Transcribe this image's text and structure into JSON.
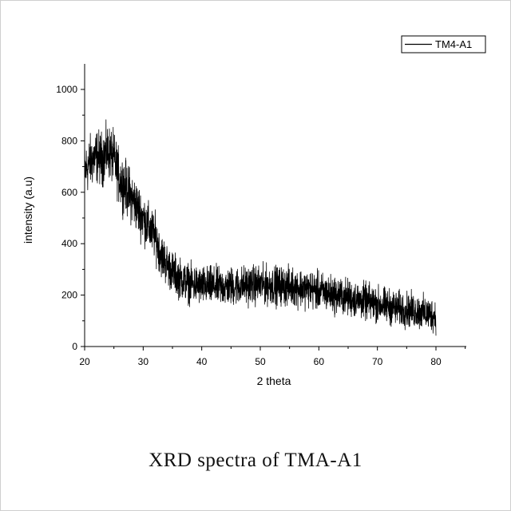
{
  "caption": "XRD spectra of TMA-A1",
  "chart_data": {
    "type": "line",
    "title": "",
    "xlabel": "2 theta",
    "ylabel": "intensity (a.u)",
    "xlim": [
      20,
      80
    ],
    "ylim": [
      0,
      1000
    ],
    "xticks": [
      "20",
      "30",
      "40",
      "50",
      "60",
      "70",
      "80"
    ],
    "yticks": [
      "0",
      "200",
      "400",
      "600",
      "800",
      "1000"
    ],
    "grid": false,
    "legend_position": "top-right",
    "line_color": "#000000",
    "series": [
      {
        "name": "TM4-A1",
        "x": [
          20,
          21,
          22,
          23,
          24,
          25,
          26,
          27,
          28,
          29,
          30,
          31,
          32,
          33,
          34,
          35,
          36,
          37,
          38,
          39,
          40,
          42,
          44,
          46,
          48,
          50,
          52,
          54,
          56,
          58,
          60,
          62,
          64,
          66,
          68,
          70,
          72,
          74,
          76,
          78,
          80
        ],
        "y": [
          680,
          720,
          740,
          730,
          760,
          730,
          650,
          620,
          580,
          540,
          500,
          460,
          430,
          360,
          320,
          290,
          270,
          255,
          245,
          240,
          235,
          235,
          232,
          235,
          240,
          240,
          238,
          235,
          232,
          225,
          215,
          205,
          195,
          185,
          175,
          165,
          155,
          145,
          140,
          130,
          120
        ],
        "noise_amplitude": 90
      }
    ]
  }
}
